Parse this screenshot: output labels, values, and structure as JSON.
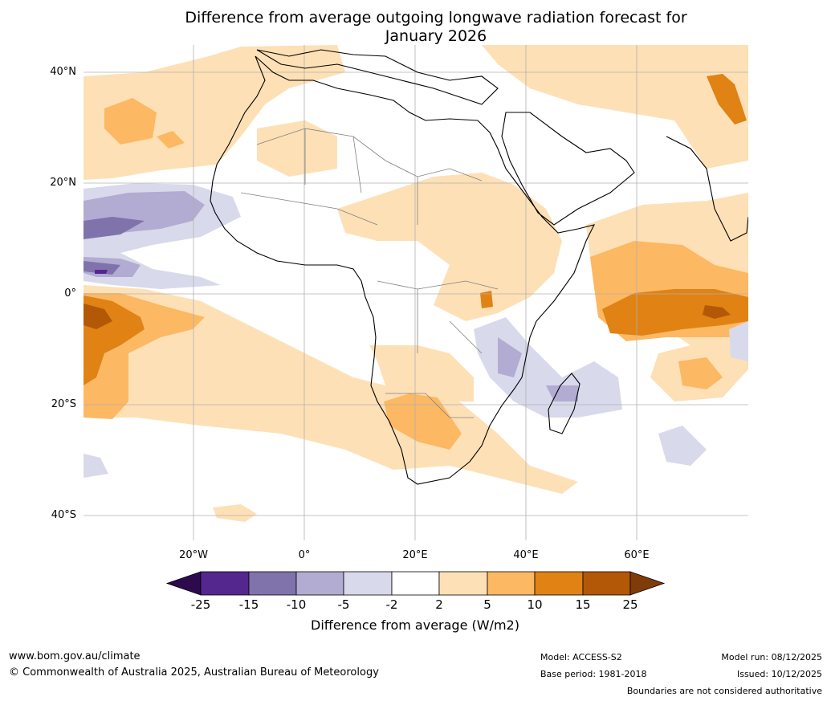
{
  "title": {
    "line1": "Difference from average outgoing longwave radiation forecast for",
    "line2": "January 2026"
  },
  "map": {
    "lat_labels": [
      "40°N",
      "20°N",
      "0°",
      "20°S",
      "40°S"
    ],
    "lon_labels": [
      "20°W",
      "0°",
      "20°E",
      "40°E",
      "60°E"
    ]
  },
  "colorbar": {
    "labels": [
      "-25",
      "-15",
      "-10",
      "-5",
      "-2",
      "2",
      "5",
      "10",
      "15",
      "25"
    ],
    "colors": [
      "#2d0a4e",
      "#54278f",
      "#8073ac",
      "#b2abd2",
      "#d8daeb",
      "#ffffff",
      "#fee0b6",
      "#fdb863",
      "#e08214",
      "#b35806",
      "#7f3b08"
    ],
    "title": "Difference from average (W/m2)"
  },
  "footer": {
    "website": "www.bom.gov.au/climate",
    "copyright": "© Commonwealth of Australia 2025, Australian Bureau of Meteorology",
    "model": "Model: ACCESS-S2",
    "base_period": "Base period: 1981-2018",
    "model_run": "Model run: 08/12/2025",
    "issued": "Issued: 10/12/2025",
    "disclaimer": "Boundaries are not considered authoritative"
  }
}
